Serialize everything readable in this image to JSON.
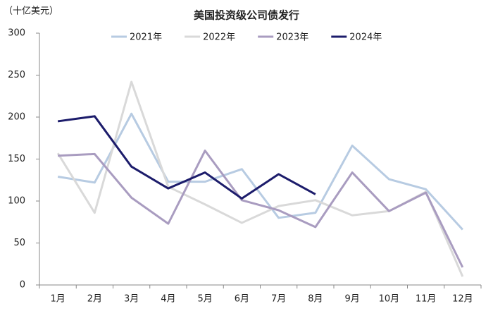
{
  "chart_data": {
    "type": "line",
    "title": "美国投资级公司债发行",
    "y_label": "（十亿美元）",
    "categories": [
      "1月",
      "2月",
      "3月",
      "4月",
      "5月",
      "6月",
      "7月",
      "8月",
      "9月",
      "10月",
      "11月",
      "12月"
    ],
    "series": [
      {
        "name": "2021年",
        "color": "#b7cbe2",
        "values": [
          129,
          122,
          204,
          123,
          123,
          138,
          80,
          86,
          166,
          126,
          114,
          66
        ]
      },
      {
        "name": "2022年",
        "color": "#d9d9d9",
        "values": [
          157,
          86,
          242,
          117,
          96,
          74,
          94,
          101,
          83,
          88,
          111,
          10
        ]
      },
      {
        "name": "2023年",
        "color": "#a99cc0",
        "values": [
          154,
          156,
          104,
          73,
          160,
          101,
          89,
          69,
          134,
          88,
          110,
          21
        ]
      },
      {
        "name": "2024年",
        "color": "#1c1c6b",
        "values": [
          195,
          201,
          141,
          115,
          134,
          103,
          132,
          108,
          null,
          null,
          null,
          null
        ]
      }
    ],
    "ylim": [
      0,
      300
    ],
    "yticks": [
      0,
      50,
      100,
      150,
      200,
      250,
      300
    ],
    "legend": "top"
  }
}
